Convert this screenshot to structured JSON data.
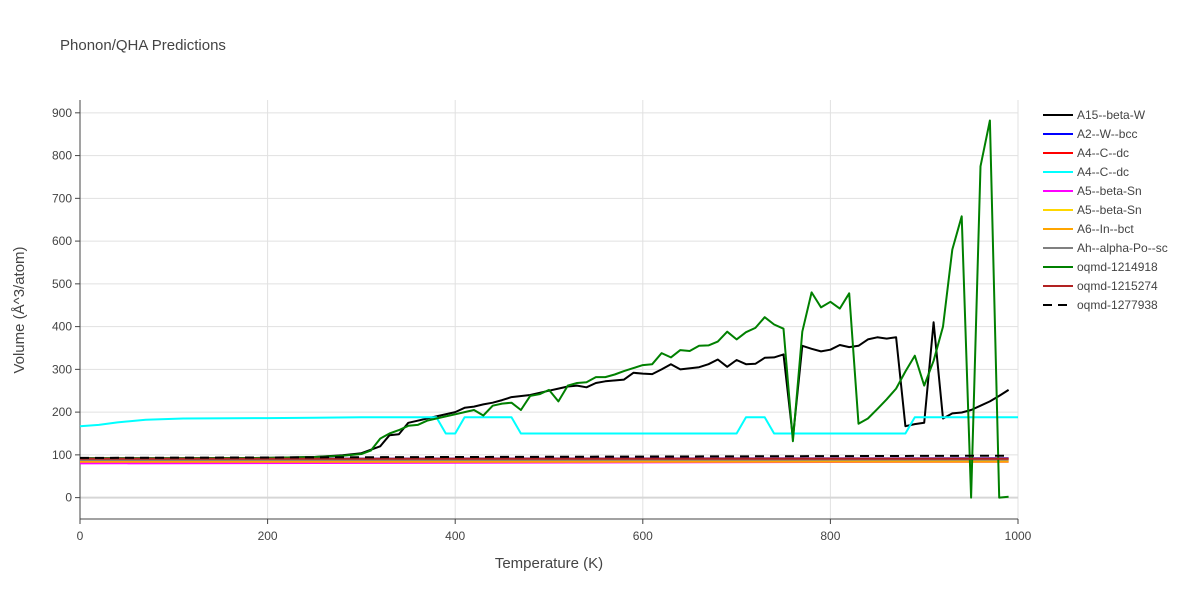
{
  "chart_data": {
    "type": "line",
    "title": "Phonon/QHA Predictions",
    "xlabel": "Temperature (K)",
    "ylabel": "Volume (Å^3/atom)",
    "xlim": [
      0,
      1000
    ],
    "ylim": [
      -50,
      930
    ],
    "xticks": [
      0,
      200,
      400,
      600,
      800,
      1000
    ],
    "yticks": [
      0,
      100,
      200,
      300,
      400,
      500,
      600,
      700,
      800,
      900
    ],
    "grid": true,
    "legend_position": "right",
    "series": [
      {
        "name": "A15--beta-W",
        "color": "#000000",
        "dash": false,
        "x": [
          0,
          100,
          200,
          250,
          280,
          300,
          320,
          330,
          340,
          350,
          360,
          380,
          400,
          410,
          420,
          430,
          440,
          450,
          460,
          480,
          500,
          510,
          520,
          530,
          540,
          550,
          560,
          580,
          590,
          600,
          610,
          620,
          630,
          640,
          660,
          670,
          680,
          690,
          700,
          710,
          720,
          730,
          740,
          750,
          760,
          770,
          780,
          790,
          800,
          810,
          820,
          830,
          840,
          850,
          860,
          870,
          880,
          890,
          900,
          910,
          920,
          930,
          940,
          950,
          960,
          970,
          980,
          990
        ],
        "y": [
          92,
          92,
          93,
          95,
          99,
          104,
          120,
          146,
          148,
          175,
          180,
          190,
          200,
          210,
          213,
          218,
          222,
          228,
          235,
          240,
          250,
          255,
          260,
          262,
          258,
          268,
          272,
          276,
          292,
          290,
          289,
          300,
          312,
          300,
          305,
          312,
          323,
          306,
          322,
          312,
          313,
          327,
          328,
          335,
          140,
          355,
          348,
          342,
          346,
          357,
          352,
          355,
          370,
          375,
          372,
          375,
          167,
          172,
          175,
          410,
          185,
          197,
          199,
          205,
          215,
          225,
          238,
          252
        ]
      },
      {
        "name": "A2--W--bcc",
        "color": "#0000ff",
        "dash": false,
        "x": [
          0,
          990
        ],
        "y": [
          91,
          92
        ]
      },
      {
        "name": "A4--C--dc",
        "color": "#ff0000",
        "dash": false,
        "x": [
          0,
          990
        ],
        "y": [
          90,
          91
        ]
      },
      {
        "name": "A4--C--dc",
        "color": "#00ffff",
        "dash": false,
        "x": [
          0,
          20,
          40,
          70,
          110,
          200,
          250,
          300,
          380,
          390,
          400,
          410,
          460,
          470,
          500,
          600,
          700,
          710,
          730,
          740,
          750,
          800,
          850,
          880,
          890,
          900,
          1000
        ],
        "y": [
          167,
          170,
          176,
          182,
          185,
          186,
          187,
          188,
          188,
          150,
          150,
          188,
          188,
          150,
          150,
          150,
          150,
          188,
          188,
          150,
          150,
          150,
          150,
          150,
          188,
          188,
          188
        ]
      },
      {
        "name": "A5--beta-Sn",
        "color": "#ff00ff",
        "dash": false,
        "x": [
          0,
          990
        ],
        "y": [
          80,
          84
        ]
      },
      {
        "name": "A5--beta-Sn",
        "color": "#ffd700",
        "dash": false,
        "x": [
          0,
          990
        ],
        "y": [
          86,
          87
        ]
      },
      {
        "name": "A6--In--bct",
        "color": "#ffa500",
        "dash": false,
        "x": [
          0,
          990
        ],
        "y": [
          84,
          84
        ]
      },
      {
        "name": "Ah--alpha-Po--sc",
        "color": "#808080",
        "dash": false,
        "x": [
          0,
          990
        ],
        "y": [
          88,
          89
        ]
      },
      {
        "name": "oqmd-1214918",
        "color": "#008000",
        "dash": false,
        "x": [
          0,
          100,
          200,
          250,
          280,
          300,
          310,
          320,
          330,
          340,
          350,
          360,
          370,
          380,
          400,
          410,
          420,
          430,
          440,
          450,
          460,
          470,
          480,
          490,
          500,
          510,
          520,
          530,
          540,
          550,
          560,
          570,
          580,
          590,
          600,
          610,
          620,
          630,
          640,
          650,
          660,
          670,
          680,
          690,
          700,
          710,
          720,
          730,
          740,
          750,
          760,
          770,
          780,
          790,
          800,
          810,
          820,
          830,
          840,
          850,
          860,
          870,
          880,
          890,
          900,
          910,
          920,
          930,
          940,
          950,
          960,
          970,
          980,
          990
        ],
        "y": [
          92,
          92,
          93,
          95,
          98,
          102,
          110,
          138,
          150,
          158,
          168,
          170,
          180,
          185,
          195,
          200,
          205,
          192,
          215,
          220,
          222,
          205,
          238,
          242,
          252,
          225,
          262,
          268,
          270,
          282,
          282,
          288,
          296,
          303,
          310,
          312,
          338,
          328,
          345,
          343,
          355,
          356,
          365,
          388,
          370,
          387,
          397,
          422,
          405,
          395,
          132,
          388,
          480,
          445,
          458,
          442,
          478,
          173,
          185,
          207,
          230,
          255,
          295,
          332,
          262,
          320,
          400,
          580,
          658,
          0,
          775,
          882,
          0,
          2
        ]
      },
      {
        "name": "oqmd-1215274",
        "color": "#b22222",
        "dash": false,
        "x": [
          0,
          990
        ],
        "y": [
          91,
          91
        ]
      },
      {
        "name": "oqmd-1277938",
        "color": "#000000",
        "dash": true,
        "x": [
          0,
          990
        ],
        "y": [
          93,
          98
        ]
      }
    ]
  }
}
